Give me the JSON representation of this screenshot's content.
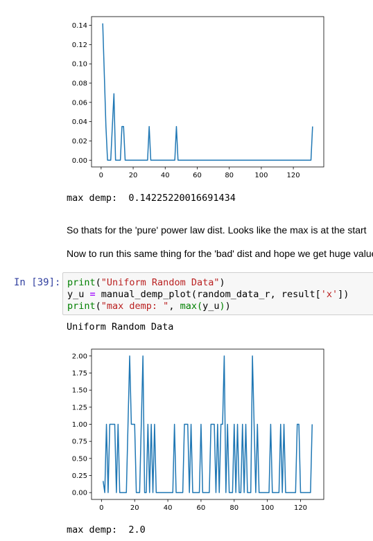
{
  "chart_data": [
    {
      "type": "line",
      "title": "",
      "xlabel": "",
      "ylabel": "",
      "xlim": [
        -6,
        139
      ],
      "ylim": [
        -0.007,
        0.149
      ],
      "xticks": [
        0,
        20,
        40,
        60,
        80,
        100,
        120
      ],
      "yticks": [
        0.0,
        0.02,
        0.04,
        0.06,
        0.08,
        0.1,
        0.12,
        0.14
      ],
      "xtick_labels": [
        "0",
        "20",
        "40",
        "60",
        "80",
        "100",
        "120"
      ],
      "ytick_labels": [
        "0.00",
        "0.02",
        "0.04",
        "0.06",
        "0.08",
        "0.10",
        "0.12",
        "0.14"
      ],
      "color": "#1f77b4",
      "x": [
        1,
        3,
        4,
        6,
        7,
        8,
        9,
        10,
        11,
        12,
        13,
        14,
        15,
        28,
        29,
        30,
        31,
        46,
        47,
        48,
        130,
        131,
        132
      ],
      "y": [
        0.142,
        0.035,
        0.0,
        0.0,
        0.035,
        0.069,
        0.0,
        0.0,
        0.0,
        0.0,
        0.035,
        0.035,
        0.0,
        0.0,
        0.0,
        0.035,
        0.0,
        0.0,
        0.035,
        0.0,
        0.0,
        0.0,
        0.035
      ]
    },
    {
      "type": "line",
      "title": "",
      "xlabel": "",
      "ylabel": "",
      "xlim": [
        -6,
        134
      ],
      "ylim": [
        -0.1,
        2.1
      ],
      "xticks": [
        0,
        20,
        40,
        60,
        80,
        100,
        120
      ],
      "yticks": [
        0.0,
        0.25,
        0.5,
        0.75,
        1.0,
        1.25,
        1.5,
        1.75,
        2.0
      ],
      "xtick_labels": [
        "0",
        "20",
        "40",
        "60",
        "80",
        "100",
        "120"
      ],
      "ytick_labels": [
        "0.00",
        "0.25",
        "0.50",
        "0.75",
        "1.00",
        "1.25",
        "1.50",
        "1.75",
        "2.00"
      ],
      "color": "#1f77b4",
      "x": [
        1,
        2,
        3,
        4,
        5,
        6,
        7,
        8,
        9,
        10,
        11,
        12,
        13,
        14,
        15,
        16,
        17,
        18,
        19,
        20,
        21,
        22,
        23,
        24,
        25,
        26,
        27,
        28,
        29,
        30,
        31,
        32,
        33,
        34,
        35,
        36,
        37,
        38,
        39,
        40,
        41,
        42,
        43,
        44,
        45,
        46,
        47,
        48,
        49,
        50,
        51,
        52,
        53,
        54,
        55,
        56,
        57,
        58,
        59,
        60,
        61,
        62,
        63,
        64,
        65,
        66,
        67,
        68,
        69,
        70,
        71,
        72,
        73,
        74,
        75,
        76,
        77,
        78,
        79,
        80,
        81,
        82,
        83,
        84,
        85,
        86,
        87,
        88,
        89,
        90,
        91,
        92,
        93,
        94,
        95,
        96,
        97,
        98,
        99,
        100,
        101,
        102,
        103,
        104,
        105,
        106,
        107,
        108,
        109,
        110,
        111,
        112,
        113,
        114,
        115,
        116,
        117,
        118,
        119,
        120,
        121,
        122,
        123,
        124,
        125,
        126,
        127
      ],
      "y": [
        0.17,
        0,
        1,
        0,
        1,
        1,
        1,
        1,
        0,
        1,
        0,
        0,
        0,
        0,
        0,
        1,
        2,
        1,
        1,
        1,
        0,
        0,
        0,
        1,
        2,
        0,
        0,
        1,
        0,
        1,
        0,
        1,
        0,
        0,
        0,
        0,
        0,
        0,
        0,
        0,
        0,
        0,
        0,
        1,
        0,
        0,
        0,
        0,
        0,
        1,
        1,
        1,
        0,
        1,
        0,
        0,
        0,
        0,
        0,
        1,
        0,
        0,
        0,
        0,
        0,
        1,
        1,
        1,
        0,
        1,
        0,
        1,
        1,
        2,
        0,
        1,
        0,
        0,
        0,
        1,
        0,
        1,
        0,
        0,
        1,
        0,
        1,
        0,
        0,
        0,
        2,
        1,
        0,
        1,
        0,
        0,
        0,
        0,
        0,
        0,
        0,
        1,
        0,
        0,
        0,
        0,
        0,
        1,
        0,
        1,
        0,
        0,
        0,
        0,
        0,
        0,
        0,
        1,
        1,
        0,
        0,
        0,
        0,
        0,
        0,
        0,
        1
      ]
    }
  ],
  "cells": {
    "out1_text": "max demp:  0.14225220016691434",
    "md_line1": "So thats for the 'pure' power law dist. Looks like the max is at the start",
    "md_line2": "Now to run this same thing for the 'bad' dist and hope we get huge values",
    "in39_prompt": "In [39]:",
    "code_l1_fn": "print",
    "code_l1_open": "(",
    "code_l1_str": "\"Uniform Random Data\"",
    "code_l1_close": ")",
    "code_l2_var": "y_u ",
    "code_l2_op": "=",
    "code_l2_call": " manual_demp_plot(random_data_r, result[",
    "code_l2_str": "'x'",
    "code_l2_close": "])",
    "code_l3_fn": "print",
    "code_l3_open": "(",
    "code_l3_str": "\"max demp: \"",
    "code_l3_mid": ", ",
    "code_l3_fn2": "max",
    "code_l3_open2": "(",
    "code_l3_arg": "y_u",
    "code_l3_close2": ")",
    "code_l3_close": ")",
    "out2_title": "Uniform Random Data",
    "out2_text": "max demp:  2.0"
  }
}
